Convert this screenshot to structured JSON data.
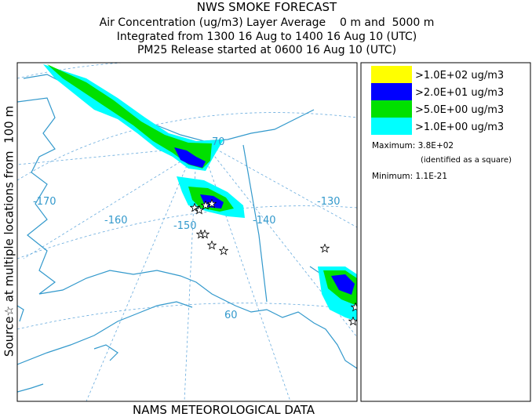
{
  "header": {
    "title": "NWS SMOKE FORECAST",
    "lines": [
      "Air Concentration (ug/m3) Layer Average    0 m and  5000 m",
      "Integrated from 1300 16 Aug to 1400 16 Aug 10 (UTC)",
      "PM25 Release started at 0600 16 Aug 10 (UTC)"
    ]
  },
  "side_label": "Source☆ at multiple locations from  100 m",
  "footer": "NAMS METEOROLOGICAL DATA",
  "map": {
    "labels": [
      "-170",
      "-160",
      "-150",
      "-140",
      "-130",
      "70",
      "60"
    ]
  },
  "legend": {
    "items": [
      {
        "label": ">1.0E+02 ug/m3",
        "color": "#ffff00"
      },
      {
        "label": ">2.0E+01 ug/m3",
        "color": "#0000ff"
      },
      {
        "label": ">5.0E+00 ug/m3",
        "color": "#00e000"
      },
      {
        "label": ">1.0E+00 ug/m3",
        "color": "#00ffff"
      }
    ],
    "maximum": "Maximum: 3.8E+02",
    "maximum_note": "(identified as a square)",
    "minimum": "Minimum: 1.1E-21"
  }
}
